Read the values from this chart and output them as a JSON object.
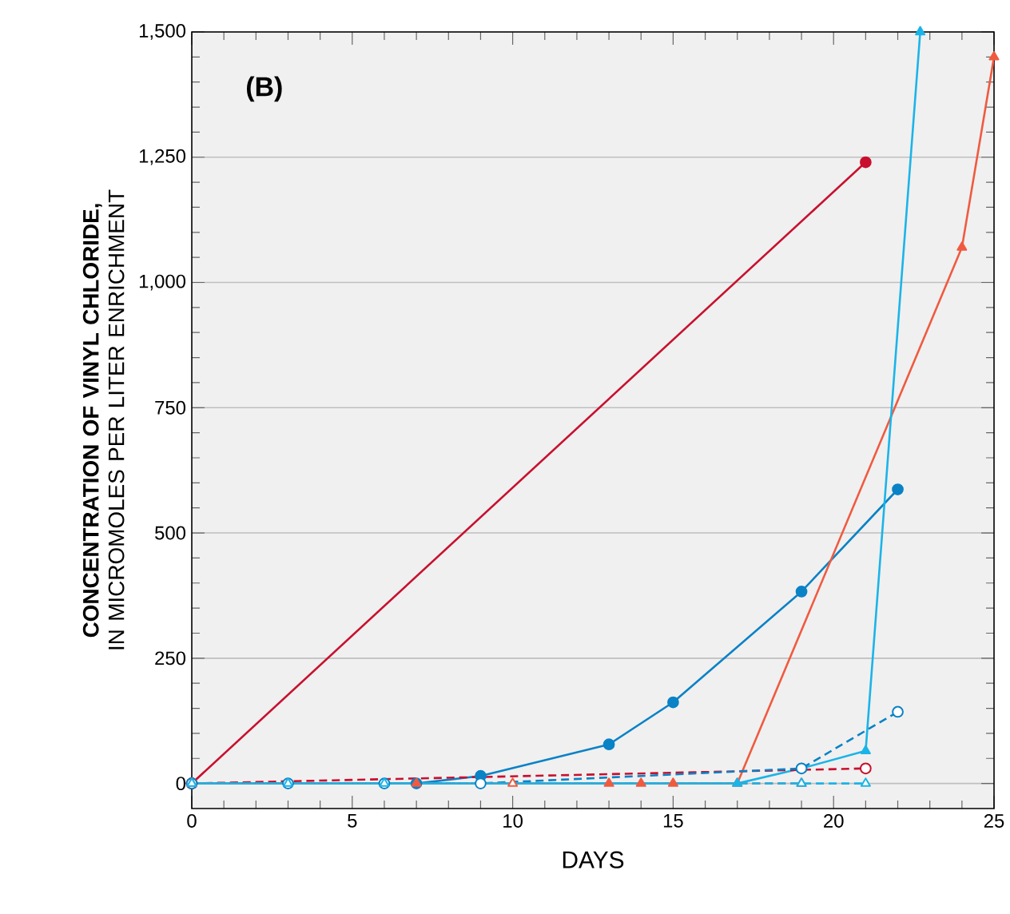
{
  "chart_data": {
    "type": "line",
    "xlabel": "DAYS",
    "ylabel": "**CONCENTRATION OF VINYL CHLORIDE,** IN MICROMOLES PER LITER ENRICHMENT",
    "annotations": [
      "(B)"
    ],
    "xlim": [
      0,
      25
    ],
    "xticks": [
      0,
      5,
      10,
      15,
      20,
      25
    ],
    "ylim": [
      -50,
      1500
    ],
    "yticks": [
      0,
      {
        "value": 250,
        "label": "250"
      },
      {
        "value": 500,
        "label": "500"
      },
      {
        "value": 750,
        "label": "750"
      },
      {
        "value": 1000,
        "label": "1,000"
      },
      {
        "value": 1250,
        "label": "1,250"
      },
      {
        "value": 1500,
        "label": "1,500"
      }
    ],
    "grid": "y",
    "legend": false,
    "series": [
      {
        "color": "#c8102e",
        "marker": "circle",
        "line_style": "solid",
        "x": [
          0,
          21
        ],
        "values": [
          0,
          1240
        ]
      },
      {
        "color": "#0a82c6",
        "marker": "circle",
        "line_style": "solid",
        "x": [
          0,
          7,
          9,
          13,
          15,
          19,
          22
        ],
        "values": [
          0,
          0,
          15,
          78,
          162,
          383,
          587
        ]
      },
      {
        "color": "#f05a40",
        "marker": "triangle",
        "line_style": "solid",
        "x": [
          0,
          7,
          13,
          14,
          15,
          17,
          24,
          25
        ],
        "values": [
          0,
          0,
          0,
          0,
          0,
          0,
          1070,
          1450
        ]
      },
      {
        "color": "#1ab4e8",
        "marker": "triangle",
        "line_style": "solid",
        "x": [
          0,
          3,
          6,
          17,
          19,
          21,
          22.7
        ],
        "values": [
          0,
          0,
          0,
          0,
          30,
          65,
          1500
        ]
      },
      {
        "color": "#c8102e",
        "marker": "circle",
        "line_style": "dashed",
        "x": [
          0,
          21
        ],
        "values": [
          0,
          30
        ]
      },
      {
        "color": "#0a82c6",
        "marker": "circle",
        "line_style": "dashed",
        "x": [
          0,
          3,
          6,
          9,
          19,
          22
        ],
        "values": [
          0,
          0,
          0,
          0,
          30,
          143
        ]
      },
      {
        "color": "#f05a40",
        "marker": "triangle",
        "line_style": "dashed",
        "x": [
          0,
          10,
          19
        ],
        "values": [
          0,
          0,
          0
        ]
      },
      {
        "color": "#1ab4e8",
        "marker": "triangle",
        "line_style": "dashed",
        "x": [
          0,
          3,
          6,
          19,
          21
        ],
        "values": [
          0,
          0,
          0,
          0,
          0
        ]
      }
    ]
  }
}
